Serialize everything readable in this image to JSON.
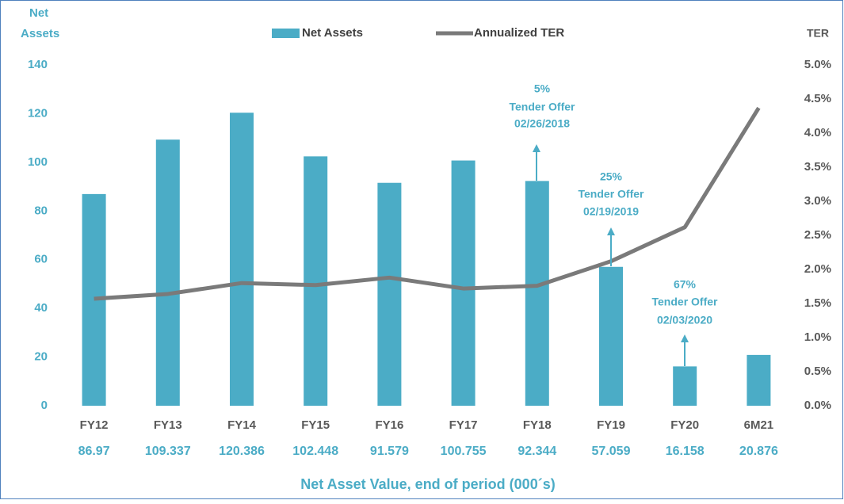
{
  "chart_data": {
    "type": "bar_line",
    "y_label_lines": [
      "Net",
      "Assets"
    ],
    "y2_label": "TER",
    "x_label": "Net  Asset Value, end of period (000´s)",
    "categories": [
      "FY12",
      "FY13",
      "FY14",
      "FY15",
      "FY16",
      "FY17",
      "FY18",
      "FY19",
      "FY20",
      "6M21"
    ],
    "series": [
      {
        "name": "Net Assets",
        "type": "bar",
        "color": "#4bacc6",
        "values": [
          86.97,
          109.337,
          120.386,
          102.448,
          91.579,
          100.755,
          92.344,
          57.059,
          16.158,
          20.876
        ]
      },
      {
        "name": "Annualized TER",
        "type": "line",
        "axis": "y2",
        "color": "#7a7a7a",
        "values": [
          1.57,
          1.64,
          1.8,
          1.77,
          1.88,
          1.72,
          1.76,
          2.12,
          2.62,
          4.37
        ]
      }
    ],
    "ylim": [
      0,
      140
    ],
    "yticks": [
      0,
      20,
      40,
      60,
      80,
      100,
      120,
      140
    ],
    "y2lim": [
      0,
      5
    ],
    "y2ticks": [
      {
        "value": 0,
        "label": "0.0%"
      },
      {
        "value": 0.5,
        "label": "0.5%"
      },
      {
        "value": 1,
        "label": "1.0%"
      },
      {
        "value": 1.5,
        "label": "1.5%"
      },
      {
        "value": 2,
        "label": "2.0%"
      },
      {
        "value": 2.5,
        "label": "2.5%"
      },
      {
        "value": 3,
        "label": "3.0%"
      },
      {
        "value": 3.5,
        "label": "3.5%"
      },
      {
        "value": 4,
        "label": "4.0%"
      },
      {
        "value": 4.5,
        "label": "4.5%"
      },
      {
        "value": 5,
        "label": "5.0%"
      }
    ],
    "annotations": [
      {
        "lines": [
          "5%",
          "Tender Offer",
          "02/26/2018"
        ]
      },
      {
        "lines": [
          "25%",
          "Tender Offer",
          "02/19/2019"
        ]
      },
      {
        "lines": [
          "67%",
          "Tender Offer",
          "02/03/2020"
        ]
      }
    ],
    "legend": "top"
  }
}
